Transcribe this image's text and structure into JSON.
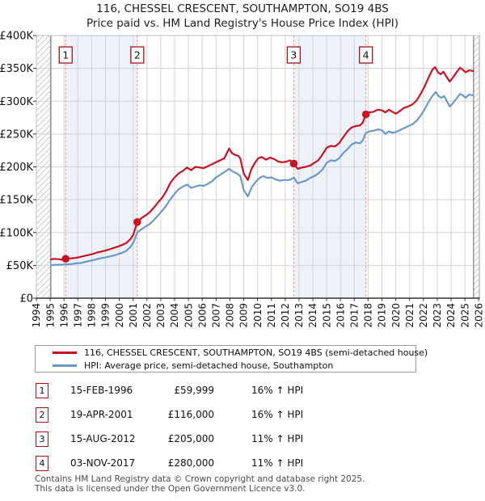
{
  "title": {
    "line1": "116, CHESSEL CRESCENT, SOUTHAMPTON, SO19 4BS",
    "line2": "Price paid vs. HM Land Registry's House Price Index (HPI)"
  },
  "legend": {
    "property": "116, CHESSEL CRESCENT, SOUTHAMPTON, SO19 4BS (semi-detached house)",
    "hpi": "HPI: Average price, semi-detached house, Southampton"
  },
  "table": {
    "rows": [
      {
        "num": "1",
        "date": "15-FEB-1996",
        "price": "£59,999",
        "vs_hpi": "16% ↑ HPI"
      },
      {
        "num": "2",
        "date": "19-APR-2001",
        "price": "£116,000",
        "vs_hpi": "16% ↑ HPI"
      },
      {
        "num": "3",
        "date": "15-AUG-2012",
        "price": "£205,000",
        "vs_hpi": "11% ↑ HPI"
      },
      {
        "num": "4",
        "date": "03-NOV-2017",
        "price": "£280,000",
        "vs_hpi": "11% ↑ HPI"
      }
    ]
  },
  "footer": {
    "line1": "Contains HM Land Registry data © Crown copyright and database right 2025.",
    "line2": "This data is licensed under the Open Government Licence v3.0."
  },
  "chart_data": {
    "type": "line",
    "title": "Price paid vs. HM Land Registry's House Price Index (HPI)",
    "xlabel": "",
    "ylabel": "",
    "x_years": [
      1994,
      1995,
      1996,
      1997,
      1998,
      1999,
      2000,
      2001,
      2002,
      2003,
      2004,
      2005,
      2006,
      2007,
      2008,
      2009,
      2010,
      2011,
      2012,
      2013,
      2014,
      2015,
      2016,
      2017,
      2018,
      2019,
      2020,
      2021,
      2022,
      2023,
      2024,
      2025,
      2026
    ],
    "x_range": [
      1994,
      2026.17
    ],
    "y_ticks": [
      0,
      50,
      100,
      150,
      200,
      250,
      300,
      350,
      400
    ],
    "y_tick_labels": [
      "£0",
      "£50K",
      "£100K",
      "£150K",
      "£200K",
      "£250K",
      "£300K",
      "£350K",
      "£400K"
    ],
    "ylim": [
      0,
      400
    ],
    "grid": true,
    "legend_position": "below",
    "units": "GBP thousands",
    "colors": {
      "property": "#cc1122",
      "hpi": "#6b99cc",
      "sale_dashed_line": "#f48080",
      "ownership_band": "#edf2fa",
      "gridline": "#d3d3d3",
      "hatch": "#c9c9c9",
      "plot_border": "#c0c0c0",
      "axis": "#333333",
      "data_edge_line": "#808080",
      "badge_border": "#aa1111"
    },
    "bands_years": [
      [
        1996.12,
        2001.3
      ],
      [
        2012.62,
        2017.84
      ]
    ],
    "hatch_regions_years": [
      [
        1994.0,
        1995.05
      ],
      [
        2025.63,
        2026.17
      ]
    ],
    "sales": [
      {
        "num": "1",
        "year": 1996.12,
        "price_k": 60,
        "date": "15-FEB-1996",
        "price_label": "£59,999"
      },
      {
        "num": "2",
        "year": 2001.3,
        "price_k": 116,
        "date": "19-APR-2001",
        "price_label": "£116,000"
      },
      {
        "num": "3",
        "year": 2012.62,
        "price_k": 205,
        "date": "15-AUG-2012",
        "price_label": "£205,000"
      },
      {
        "num": "4",
        "year": 2017.84,
        "price_k": 280,
        "date": "03-NOV-2017",
        "price_label": "£280,000"
      }
    ],
    "series": [
      {
        "key": "property",
        "name": "116, CHESSEL CRESCENT, SOUTHAMPTON, SO19 4BS (semi-detached house)",
        "points": [
          [
            1995.05,
            59
          ],
          [
            1995.3,
            60
          ],
          [
            1995.6,
            59.5
          ],
          [
            1995.9,
            58.5
          ],
          [
            1996.12,
            60
          ],
          [
            1996.5,
            60.5
          ],
          [
            1996.9,
            61.5
          ],
          [
            1997.2,
            63
          ],
          [
            1997.5,
            64.5
          ],
          [
            1997.8,
            66
          ],
          [
            1998.1,
            67.5
          ],
          [
            1998.4,
            69.5
          ],
          [
            1998.7,
            71
          ],
          [
            1999.0,
            72.5
          ],
          [
            1999.3,
            74.5
          ],
          [
            1999.6,
            76.5
          ],
          [
            1999.9,
            78.5
          ],
          [
            2000.2,
            81
          ],
          [
            2000.5,
            84
          ],
          [
            2000.8,
            90
          ],
          [
            2001.0,
            96
          ],
          [
            2001.15,
            106
          ],
          [
            2001.3,
            116
          ],
          [
            2001.6,
            122
          ],
          [
            2001.9,
            126
          ],
          [
            2002.2,
            131
          ],
          [
            2002.5,
            138
          ],
          [
            2002.8,
            146
          ],
          [
            2003.1,
            153
          ],
          [
            2003.4,
            163
          ],
          [
            2003.7,
            176
          ],
          [
            2004.0,
            184
          ],
          [
            2004.3,
            190
          ],
          [
            2004.6,
            194
          ],
          [
            2004.9,
            199
          ],
          [
            2005.2,
            195
          ],
          [
            2005.5,
            200
          ],
          [
            2005.8,
            199
          ],
          [
            2006.1,
            198
          ],
          [
            2006.4,
            201
          ],
          [
            2006.7,
            204
          ],
          [
            2007.0,
            207
          ],
          [
            2007.3,
            210
          ],
          [
            2007.6,
            213
          ],
          [
            2007.8,
            222
          ],
          [
            2007.95,
            228
          ],
          [
            2008.15,
            221
          ],
          [
            2008.4,
            218
          ],
          [
            2008.6,
            217
          ],
          [
            2008.75,
            213
          ],
          [
            2009.0,
            190
          ],
          [
            2009.3,
            180
          ],
          [
            2009.55,
            196
          ],
          [
            2009.8,
            206
          ],
          [
            2010.05,
            213
          ],
          [
            2010.3,
            215
          ],
          [
            2010.6,
            211
          ],
          [
            2010.9,
            214
          ],
          [
            2011.2,
            212
          ],
          [
            2011.5,
            208
          ],
          [
            2011.8,
            207
          ],
          [
            2012.1,
            208
          ],
          [
            2012.35,
            210
          ],
          [
            2012.62,
            205
          ],
          [
            2012.9,
            197
          ],
          [
            2013.2,
            199
          ],
          [
            2013.5,
            200
          ],
          [
            2013.8,
            202
          ],
          [
            2014.1,
            206
          ],
          [
            2014.4,
            210
          ],
          [
            2014.7,
            219
          ],
          [
            2015.0,
            229
          ],
          [
            2015.3,
            232
          ],
          [
            2015.6,
            231
          ],
          [
            2015.9,
            236
          ],
          [
            2016.2,
            245
          ],
          [
            2016.5,
            254
          ],
          [
            2016.8,
            260
          ],
          [
            2017.1,
            262
          ],
          [
            2017.4,
            263
          ],
          [
            2017.6,
            267
          ],
          [
            2017.84,
            280
          ],
          [
            2018.1,
            283
          ],
          [
            2018.4,
            284
          ],
          [
            2018.7,
            287
          ],
          [
            2019.0,
            286
          ],
          [
            2019.25,
            283
          ],
          [
            2019.5,
            287
          ],
          [
            2019.75,
            284
          ],
          [
            2020.0,
            281
          ],
          [
            2020.3,
            285
          ],
          [
            2020.6,
            290
          ],
          [
            2020.9,
            292
          ],
          [
            2021.2,
            295
          ],
          [
            2021.5,
            301
          ],
          [
            2021.8,
            311
          ],
          [
            2022.1,
            323
          ],
          [
            2022.4,
            337
          ],
          [
            2022.65,
            348
          ],
          [
            2022.85,
            352
          ],
          [
            2023.05,
            344
          ],
          [
            2023.25,
            341
          ],
          [
            2023.45,
            345
          ],
          [
            2023.65,
            338
          ],
          [
            2023.9,
            330
          ],
          [
            2024.1,
            335
          ],
          [
            2024.4,
            344
          ],
          [
            2024.65,
            351
          ],
          [
            2024.85,
            348
          ],
          [
            2025.05,
            344
          ],
          [
            2025.3,
            347
          ],
          [
            2025.6,
            346
          ]
        ]
      },
      {
        "key": "hpi",
        "name": "HPI: Average price, semi-detached house, Southampton",
        "points": [
          [
            1995.05,
            50
          ],
          [
            1995.4,
            51
          ],
          [
            1995.8,
            51
          ],
          [
            1996.12,
            51.5
          ],
          [
            1996.5,
            52
          ],
          [
            1996.9,
            53
          ],
          [
            1997.2,
            53.5
          ],
          [
            1997.5,
            55
          ],
          [
            1997.8,
            56.5
          ],
          [
            1998.1,
            58
          ],
          [
            1998.4,
            59.5
          ],
          [
            1998.7,
            61
          ],
          [
            1999.0,
            62
          ],
          [
            1999.3,
            63.5
          ],
          [
            1999.6,
            65
          ],
          [
            1999.9,
            67
          ],
          [
            2000.2,
            69
          ],
          [
            2000.5,
            72
          ],
          [
            2000.8,
            78
          ],
          [
            2001.0,
            84
          ],
          [
            2001.15,
            92
          ],
          [
            2001.3,
            100
          ],
          [
            2001.6,
            105
          ],
          [
            2001.9,
            109
          ],
          [
            2002.2,
            113
          ],
          [
            2002.5,
            119
          ],
          [
            2002.8,
            126
          ],
          [
            2003.1,
            133
          ],
          [
            2003.4,
            141
          ],
          [
            2003.7,
            151
          ],
          [
            2004.0,
            159
          ],
          [
            2004.3,
            166
          ],
          [
            2004.6,
            170
          ],
          [
            2004.9,
            173
          ],
          [
            2005.2,
            168
          ],
          [
            2005.5,
            170
          ],
          [
            2005.8,
            172
          ],
          [
            2006.1,
            171
          ],
          [
            2006.4,
            174
          ],
          [
            2006.7,
            178
          ],
          [
            2007.0,
            184
          ],
          [
            2007.3,
            188
          ],
          [
            2007.6,
            192
          ],
          [
            2007.95,
            197
          ],
          [
            2008.2,
            193
          ],
          [
            2008.5,
            190
          ],
          [
            2008.75,
            186
          ],
          [
            2009.0,
            165
          ],
          [
            2009.3,
            155
          ],
          [
            2009.6,
            170
          ],
          [
            2009.9,
            178
          ],
          [
            2010.2,
            184
          ],
          [
            2010.45,
            186
          ],
          [
            2010.7,
            183
          ],
          [
            2011.0,
            184
          ],
          [
            2011.3,
            181
          ],
          [
            2011.6,
            179
          ],
          [
            2011.9,
            180
          ],
          [
            2012.2,
            180
          ],
          [
            2012.45,
            181
          ],
          [
            2012.62,
            184
          ],
          [
            2012.9,
            175
          ],
          [
            2013.2,
            177
          ],
          [
            2013.5,
            179
          ],
          [
            2013.8,
            183
          ],
          [
            2014.1,
            186
          ],
          [
            2014.4,
            190
          ],
          [
            2014.7,
            196
          ],
          [
            2015.0,
            206
          ],
          [
            2015.3,
            210
          ],
          [
            2015.6,
            209
          ],
          [
            2015.9,
            213
          ],
          [
            2016.2,
            221
          ],
          [
            2016.5,
            227
          ],
          [
            2016.8,
            234
          ],
          [
            2017.1,
            237
          ],
          [
            2017.4,
            236
          ],
          [
            2017.6,
            240
          ],
          [
            2017.84,
            252
          ],
          [
            2018.1,
            254
          ],
          [
            2018.4,
            255
          ],
          [
            2018.7,
            257
          ],
          [
            2019.0,
            256
          ],
          [
            2019.25,
            250
          ],
          [
            2019.5,
            254
          ],
          [
            2019.75,
            252
          ],
          [
            2020.0,
            253
          ],
          [
            2020.3,
            256
          ],
          [
            2020.6,
            259
          ],
          [
            2020.9,
            262
          ],
          [
            2021.2,
            265
          ],
          [
            2021.5,
            270
          ],
          [
            2021.8,
            278
          ],
          [
            2022.1,
            288
          ],
          [
            2022.4,
            300
          ],
          [
            2022.65,
            308
          ],
          [
            2022.9,
            314
          ],
          [
            2023.1,
            308
          ],
          [
            2023.3,
            305
          ],
          [
            2023.5,
            308
          ],
          [
            2023.7,
            300
          ],
          [
            2023.9,
            292
          ],
          [
            2024.1,
            296
          ],
          [
            2024.4,
            304
          ],
          [
            2024.65,
            311
          ],
          [
            2024.85,
            309
          ],
          [
            2025.05,
            305
          ],
          [
            2025.3,
            310
          ],
          [
            2025.6,
            309
          ]
        ]
      }
    ]
  }
}
